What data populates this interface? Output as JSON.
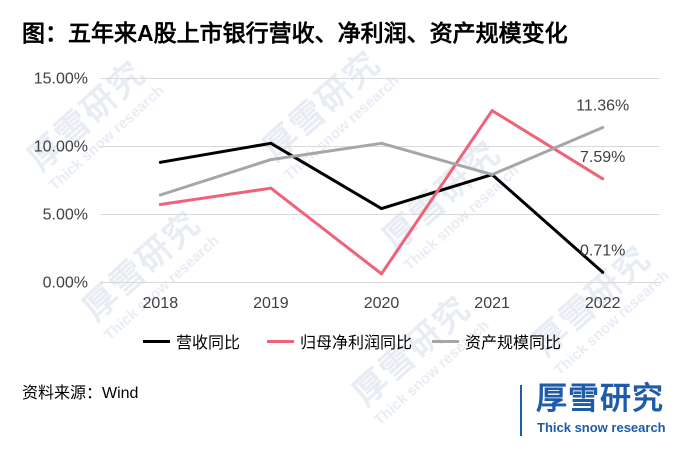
{
  "chart_data": {
    "type": "line",
    "title": "图：五年来A股上市银行营收、净利润、资产规模变化",
    "xlabel": "",
    "ylabel": "",
    "categories": [
      "2018",
      "2019",
      "2020",
      "2021",
      "2022"
    ],
    "ylim": [
      0,
      15
    ],
    "yticks": [
      0,
      5,
      10,
      15
    ],
    "ytick_labels": [
      "0.00%",
      "5.00%",
      "10.00%",
      "15.00%"
    ],
    "grid": true,
    "legend": "bottom",
    "series": [
      {
        "name": "营收同比",
        "color": "#000000",
        "values": [
          8.8,
          10.2,
          5.4,
          7.9,
          0.71
        ],
        "value_labels": [
          null,
          null,
          null,
          null,
          "0.71%"
        ]
      },
      {
        "name": "归母净利润同比",
        "color": "#f0627a",
        "values": [
          5.7,
          6.9,
          0.6,
          12.6,
          7.59
        ],
        "value_labels": [
          null,
          null,
          null,
          null,
          "7.59%"
        ]
      },
      {
        "name": "资产规模同比",
        "color": "#a6a6a6",
        "values": [
          6.4,
          9.0,
          10.2,
          7.9,
          11.36
        ],
        "value_labels": [
          null,
          null,
          null,
          null,
          "11.36%"
        ]
      }
    ]
  },
  "source": "资料来源：Wind",
  "logo": {
    "name": "厚雪研究",
    "tagline": "Thick snow research",
    "color": "#1e5ba8"
  },
  "watermark": {
    "name": "厚雪研究",
    "tagline": "Thick snow research"
  }
}
